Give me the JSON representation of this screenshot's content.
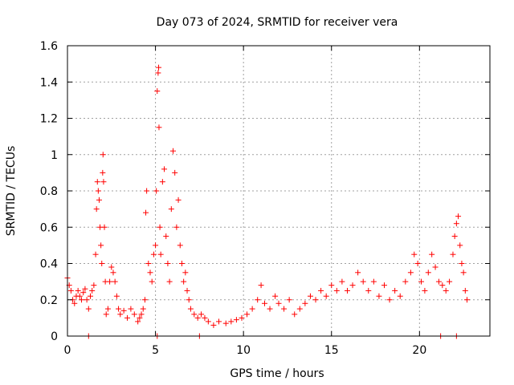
{
  "chart_data": {
    "type": "scatter",
    "title": "Day 073 of 2024, SRMTID for receiver vera",
    "xlabel": "GPS time / hours",
    "ylabel": "SRMTID / TECUs",
    "xlim": [
      0,
      24
    ],
    "ylim": [
      0,
      1.6
    ],
    "xticks": [
      0,
      5,
      10,
      15,
      20
    ],
    "xtick_labels": [
      "0",
      "5",
      "10",
      "15",
      "20"
    ],
    "yticks": [
      0,
      0.2,
      0.4,
      0.6,
      0.8,
      1.0,
      1.2,
      1.4,
      1.6
    ],
    "ytick_labels": [
      "0",
      "0.2",
      "0.4",
      "0.6",
      "0.8",
      "1",
      "1.2",
      "1.4",
      "1.6"
    ],
    "grid": true,
    "marker": "+",
    "color": "#ff0000",
    "series": [
      {
        "name": "SRMTID",
        "points": [
          [
            0.0,
            0.32
          ],
          [
            0.1,
            0.28
          ],
          [
            0.2,
            0.25
          ],
          [
            0.3,
            0.2
          ],
          [
            0.4,
            0.18
          ],
          [
            0.5,
            0.22
          ],
          [
            0.6,
            0.25
          ],
          [
            0.7,
            0.22
          ],
          [
            0.8,
            0.2
          ],
          [
            0.9,
            0.24
          ],
          [
            1.0,
            0.26
          ],
          [
            1.1,
            0.2
          ],
          [
            1.2,
            0.15
          ],
          [
            1.3,
            0.22
          ],
          [
            1.4,
            0.25
          ],
          [
            1.5,
            0.28
          ],
          [
            1.6,
            0.45
          ],
          [
            1.65,
            0.7
          ],
          [
            1.7,
            0.85
          ],
          [
            1.75,
            0.8
          ],
          [
            1.8,
            0.75
          ],
          [
            1.85,
            0.6
          ],
          [
            1.9,
            0.5
          ],
          [
            1.95,
            0.4
          ],
          [
            2.0,
            0.9
          ],
          [
            2.02,
            1.0
          ],
          [
            2.05,
            0.85
          ],
          [
            2.1,
            0.6
          ],
          [
            2.15,
            0.3
          ],
          [
            2.2,
            0.12
          ],
          [
            2.3,
            0.15
          ],
          [
            2.4,
            0.3
          ],
          [
            2.5,
            0.38
          ],
          [
            2.6,
            0.35
          ],
          [
            2.7,
            0.3
          ],
          [
            2.8,
            0.22
          ],
          [
            2.9,
            0.15
          ],
          [
            3.0,
            0.12
          ],
          [
            3.2,
            0.14
          ],
          [
            3.4,
            0.1
          ],
          [
            3.6,
            0.15
          ],
          [
            3.8,
            0.12
          ],
          [
            4.0,
            0.08
          ],
          [
            4.1,
            0.1
          ],
          [
            4.2,
            0.12
          ],
          [
            4.3,
            0.15
          ],
          [
            4.4,
            0.2
          ],
          [
            4.45,
            0.68
          ],
          [
            4.5,
            0.8
          ],
          [
            4.6,
            0.4
          ],
          [
            4.7,
            0.35
          ],
          [
            4.8,
            0.3
          ],
          [
            4.9,
            0.45
          ],
          [
            5.0,
            0.5
          ],
          [
            5.05,
            0.8
          ],
          [
            5.1,
            1.35
          ],
          [
            5.15,
            1.45
          ],
          [
            5.18,
            1.48
          ],
          [
            5.2,
            1.15
          ],
          [
            5.25,
            0.6
          ],
          [
            5.3,
            0.45
          ],
          [
            5.4,
            0.85
          ],
          [
            5.5,
            0.92
          ],
          [
            5.6,
            0.55
          ],
          [
            5.7,
            0.4
          ],
          [
            5.8,
            0.3
          ],
          [
            5.9,
            0.7
          ],
          [
            6.0,
            1.02
          ],
          [
            6.1,
            0.9
          ],
          [
            6.2,
            0.6
          ],
          [
            6.3,
            0.75
          ],
          [
            6.4,
            0.5
          ],
          [
            6.5,
            0.4
          ],
          [
            6.6,
            0.3
          ],
          [
            6.7,
            0.35
          ],
          [
            6.8,
            0.25
          ],
          [
            6.9,
            0.2
          ],
          [
            7.0,
            0.15
          ],
          [
            7.2,
            0.12
          ],
          [
            7.4,
            0.1
          ],
          [
            7.6,
            0.12
          ],
          [
            7.8,
            0.1
          ],
          [
            8.0,
            0.08
          ],
          [
            8.3,
            0.06
          ],
          [
            8.6,
            0.08
          ],
          [
            9.0,
            0.07
          ],
          [
            9.3,
            0.08
          ],
          [
            9.6,
            0.09
          ],
          [
            9.9,
            0.1
          ],
          [
            10.2,
            0.12
          ],
          [
            10.5,
            0.15
          ],
          [
            10.8,
            0.2
          ],
          [
            11.0,
            0.28
          ],
          [
            11.2,
            0.18
          ],
          [
            11.5,
            0.15
          ],
          [
            11.8,
            0.22
          ],
          [
            12.0,
            0.18
          ],
          [
            12.3,
            0.15
          ],
          [
            12.6,
            0.2
          ],
          [
            12.9,
            0.12
          ],
          [
            13.2,
            0.15
          ],
          [
            13.5,
            0.18
          ],
          [
            13.8,
            0.22
          ],
          [
            14.1,
            0.2
          ],
          [
            14.4,
            0.25
          ],
          [
            14.7,
            0.22
          ],
          [
            15.0,
            0.28
          ],
          [
            15.3,
            0.25
          ],
          [
            15.6,
            0.3
          ],
          [
            15.9,
            0.25
          ],
          [
            16.2,
            0.28
          ],
          [
            16.5,
            0.35
          ],
          [
            16.8,
            0.3
          ],
          [
            17.1,
            0.25
          ],
          [
            17.4,
            0.3
          ],
          [
            17.7,
            0.22
          ],
          [
            18.0,
            0.28
          ],
          [
            18.3,
            0.2
          ],
          [
            18.6,
            0.25
          ],
          [
            18.9,
            0.22
          ],
          [
            19.2,
            0.3
          ],
          [
            19.5,
            0.35
          ],
          [
            19.7,
            0.45
          ],
          [
            19.9,
            0.4
          ],
          [
            20.1,
            0.3
          ],
          [
            20.3,
            0.25
          ],
          [
            20.5,
            0.35
          ],
          [
            20.7,
            0.45
          ],
          [
            20.9,
            0.38
          ],
          [
            21.1,
            0.3
          ],
          [
            21.3,
            0.28
          ],
          [
            21.5,
            0.25
          ],
          [
            21.7,
            0.3
          ],
          [
            21.9,
            0.45
          ],
          [
            22.0,
            0.55
          ],
          [
            22.1,
            0.62
          ],
          [
            22.2,
            0.66
          ],
          [
            22.3,
            0.5
          ],
          [
            22.4,
            0.4
          ],
          [
            22.5,
            0.35
          ],
          [
            22.6,
            0.25
          ],
          [
            22.7,
            0.2
          ],
          [
            1.2,
            0.0
          ],
          [
            5.1,
            0.0
          ],
          [
            7.5,
            0.0
          ],
          [
            21.2,
            0.0
          ],
          [
            22.1,
            0.0
          ]
        ]
      }
    ]
  }
}
